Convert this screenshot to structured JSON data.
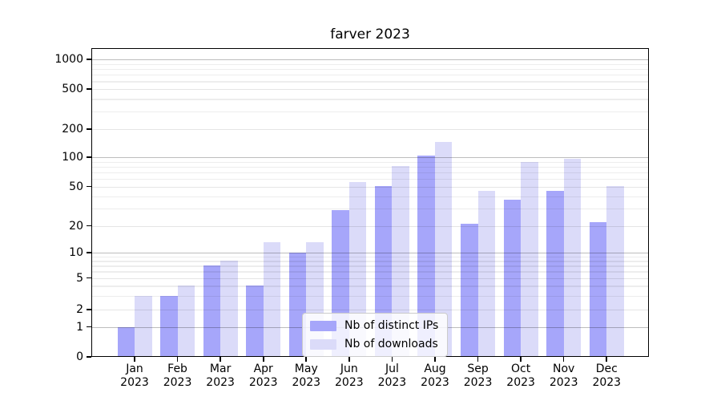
{
  "chart_data": {
    "type": "bar",
    "title": "farver 2023",
    "categories": [
      "Jan 2023",
      "Feb 2023",
      "Mar 2023",
      "Apr 2023",
      "May 2023",
      "Jun 2023",
      "Jul 2023",
      "Aug 2023",
      "Sep 2023",
      "Oct 2023",
      "Nov 2023",
      "Dec 2023"
    ],
    "series": [
      {
        "name": "Nb of distinct IPs",
        "color": "#a6a6fa",
        "values": [
          1,
          3,
          7,
          4,
          10,
          29,
          51,
          104,
          21,
          37,
          45,
          22
        ]
      },
      {
        "name": "Nb of downloads",
        "color": "#dbdbf9",
        "values": [
          3,
          4,
          8,
          13,
          13,
          56,
          82,
          145,
          45,
          90,
          97,
          51
        ]
      }
    ],
    "xlabel": "",
    "ylabel": "",
    "y_axis": {
      "scale": "symlog",
      "tick_labels": [
        "0",
        "1",
        "2",
        "5",
        "10",
        "20",
        "50",
        "100",
        "200",
        "500",
        "1000"
      ],
      "ticks": [
        0,
        1,
        2,
        5,
        10,
        20,
        50,
        100,
        200,
        500,
        1000
      ]
    },
    "grid": true,
    "legend_position": "lower center inside",
    "colors": {
      "background": "#ffffff",
      "major_gridline": "#bdbdbd",
      "minor_gridline": "#ececec",
      "axis": "#000000"
    }
  }
}
